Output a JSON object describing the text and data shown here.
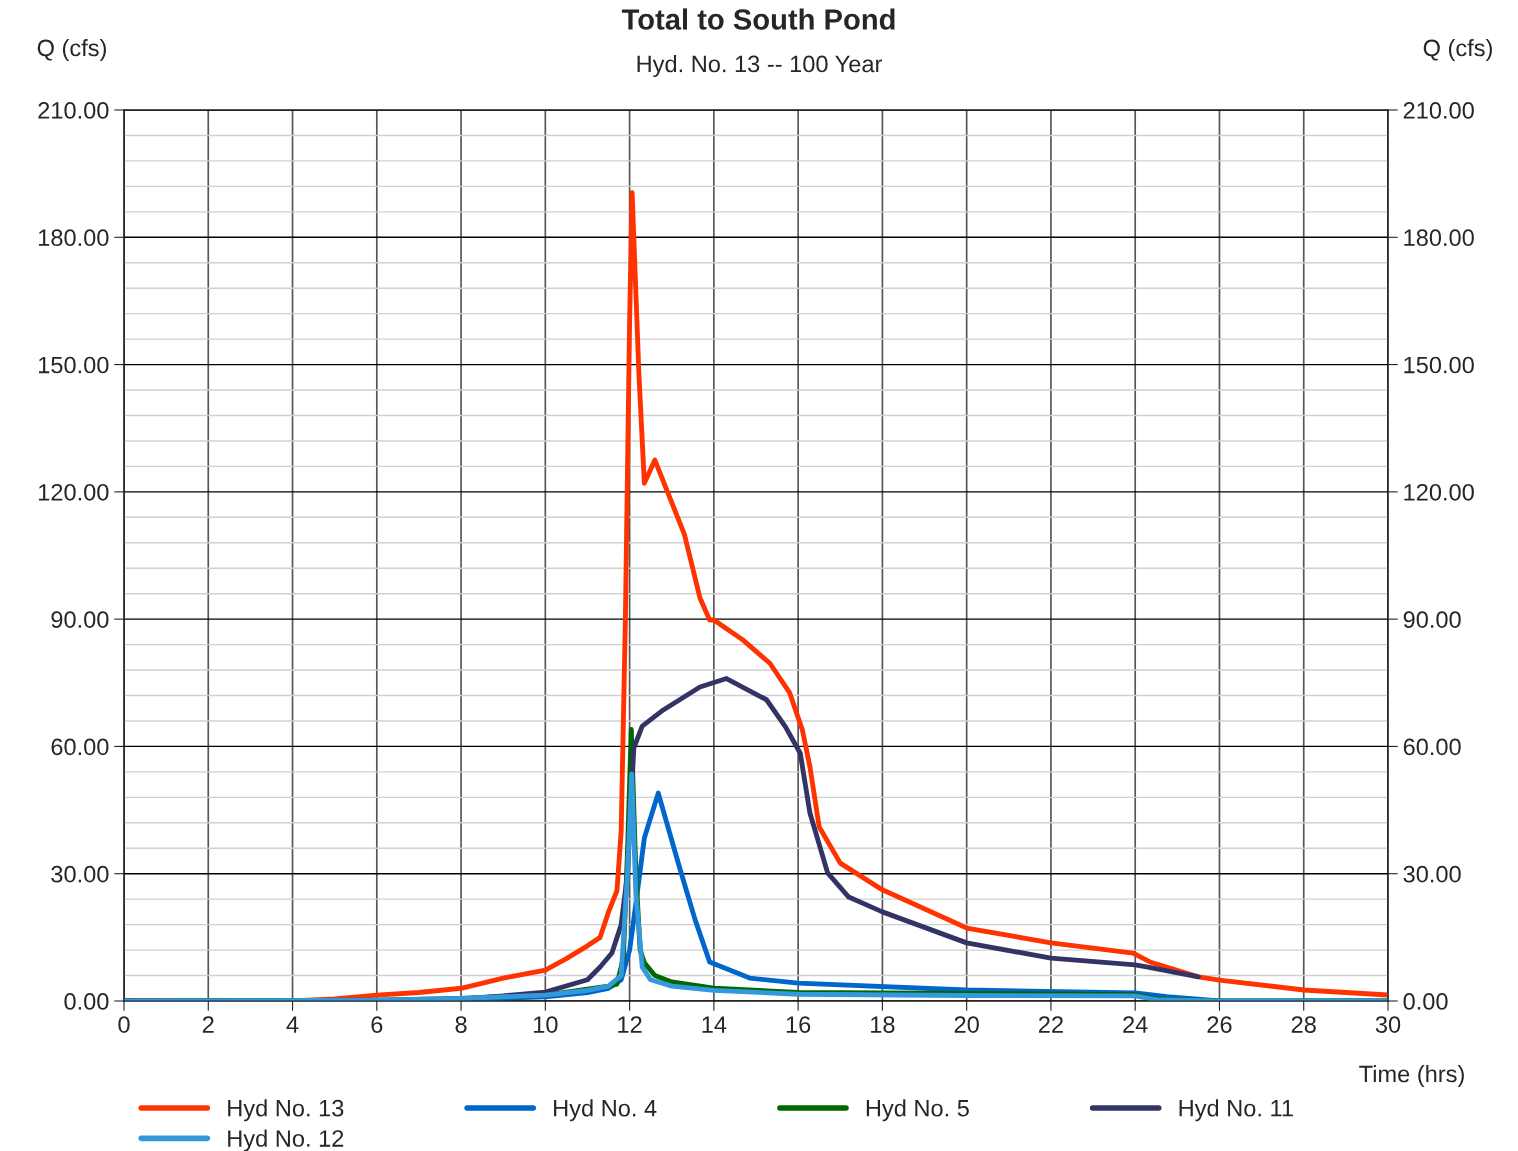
{
  "chart_data": {
    "type": "line",
    "title": "Total to South Pond",
    "subtitle": "Hyd. No. 13 -- 100 Year",
    "xlabel": "Time (hrs)",
    "ylabel": "Q (cfs)",
    "y2label": "Q (cfs)",
    "xlim": [
      0,
      30
    ],
    "xticks": [
      0,
      2,
      4,
      6,
      8,
      10,
      12,
      14,
      16,
      18,
      20,
      22,
      24,
      26,
      28,
      30
    ],
    "ylim": [
      0,
      210
    ],
    "yticks": [
      {
        "value": 0,
        "label": "0.00"
      },
      {
        "value": 6,
        "label": null
      },
      {
        "value": 12,
        "label": null
      },
      {
        "value": 18,
        "label": null
      },
      {
        "value": 24,
        "label": null
      },
      {
        "value": 30,
        "label": "30.00"
      },
      {
        "value": 36,
        "label": null
      },
      {
        "value": 42,
        "label": null
      },
      {
        "value": 48,
        "label": null
      },
      {
        "value": 54,
        "label": null
      },
      {
        "value": 60,
        "label": "60.00"
      },
      {
        "value": 66,
        "label": null
      },
      {
        "value": 72,
        "label": null
      },
      {
        "value": 78,
        "label": null
      },
      {
        "value": 84,
        "label": null
      },
      {
        "value": 90,
        "label": "90.00"
      },
      {
        "value": 96,
        "label": null
      },
      {
        "value": 102,
        "label": null
      },
      {
        "value": 108,
        "label": null
      },
      {
        "value": 114,
        "label": null
      },
      {
        "value": 120,
        "label": "120.00"
      },
      {
        "value": 126,
        "label": null
      },
      {
        "value": 132,
        "label": null
      },
      {
        "value": 138,
        "label": null
      },
      {
        "value": 144,
        "label": null
      },
      {
        "value": 150,
        "label": "150.00"
      },
      {
        "value": 156,
        "label": null
      },
      {
        "value": 162,
        "label": null
      },
      {
        "value": 168,
        "label": null
      },
      {
        "value": 174,
        "label": null
      },
      {
        "value": 180,
        "label": "180.00"
      },
      {
        "value": 186,
        "label": null
      },
      {
        "value": 192,
        "label": null
      },
      {
        "value": 198,
        "label": null
      },
      {
        "value": 204,
        "label": null
      },
      {
        "value": 210,
        "label": "210.00"
      }
    ],
    "y2lim": [
      0,
      210
    ],
    "y2ticks": [
      {
        "value": 0,
        "label": "0.00"
      },
      {
        "value": 30,
        "label": "30.00"
      },
      {
        "value": 60,
        "label": "60.00"
      },
      {
        "value": 90,
        "label": "90.00"
      },
      {
        "value": 120,
        "label": "120.00"
      },
      {
        "value": 150,
        "label": "150.00"
      },
      {
        "value": 180,
        "label": "180.00"
      },
      {
        "value": 210,
        "label": "210.00"
      }
    ],
    "grid": true,
    "legend": "bottom",
    "marker": "none",
    "line_style": "solid",
    "series": [
      {
        "name": "Hyd No. 13",
        "color": "#ff3300",
        "x": [
          0,
          4,
          5,
          6,
          7,
          8,
          9,
          10,
          10.5,
          11,
          11.3,
          11.5,
          11.7,
          11.8,
          11.9,
          12.0,
          12.06,
          12.22,
          12.35,
          12.6,
          12.9,
          13.3,
          13.67,
          13.9,
          14.0,
          14.7,
          15.33,
          15.8,
          16.1,
          16.28,
          16.5,
          17.0,
          18.0,
          20.0,
          22.0,
          23.95,
          24.35,
          25.5,
          26.0,
          28.0,
          30.0
        ],
        "values": [
          0,
          0,
          0.5,
          1.4,
          2,
          3,
          5.4,
          7.3,
          10,
          13,
          15,
          21,
          26,
          40,
          90,
          160,
          190.5,
          148,
          122,
          127.5,
          120,
          110,
          95,
          89.8,
          89.8,
          85,
          79.6,
          72.6,
          63.9,
          55.2,
          41,
          32.5,
          26.2,
          17.2,
          13.7,
          11.3,
          9.2,
          5.7,
          4.9,
          2.6,
          1.4
        ]
      },
      {
        "name": "Hyd No. 4",
        "color": "#0066cc",
        "x": [
          0,
          6,
          8,
          10,
          11,
          11.5,
          11.8,
          12.0,
          12.1,
          12.35,
          12.68,
          13.17,
          13.55,
          13.9,
          14.85,
          16,
          20,
          24,
          24.75,
          26,
          30
        ],
        "values": [
          0,
          0,
          0.3,
          1,
          2,
          3,
          5,
          12,
          19.3,
          38.4,
          49,
          32,
          19.3,
          9.2,
          5.4,
          4.2,
          2.6,
          1.9,
          1,
          0,
          0
        ]
      },
      {
        "name": "Hyd No. 5",
        "color": "#006600",
        "x": [
          0,
          6,
          8,
          10,
          11,
          11.5,
          11.7,
          11.85,
          11.95,
          12.04,
          12.15,
          12.25,
          12.35,
          12.6,
          13,
          14,
          16,
          20,
          24,
          24.5,
          26,
          30
        ],
        "values": [
          0,
          0.2,
          0.6,
          1.4,
          null,
          3.5,
          4,
          10,
          35,
          64,
          30,
          12,
          9,
          6,
          4.5,
          3,
          2,
          1.8,
          1.5,
          0.5,
          0,
          0
        ]
      },
      {
        "name": "Hyd No. 11",
        "color": "#333366",
        "x": [
          0,
          7,
          8,
          9,
          10,
          11,
          11.3,
          11.58,
          11.8,
          11.95,
          12.05,
          12.1,
          12.3,
          12.8,
          13.67,
          14.3,
          15.25,
          15.7,
          16.05,
          16.28,
          16.7,
          17.2,
          18,
          20,
          22,
          24,
          24.3,
          25.5
        ],
        "values": [
          0,
          0,
          0.5,
          1.2,
          2.1,
          5,
          8,
          11.3,
          18,
          30,
          50,
          59.6,
          64.8,
          68.6,
          74,
          76,
          71,
          64.6,
          58.4,
          44.3,
          30.2,
          24.5,
          21,
          13.7,
          10.1,
          8.5,
          8,
          5.7
        ]
      },
      {
        "name": "Hyd No. 12",
        "color": "#3399dd",
        "x": [
          0,
          6,
          8,
          10,
          11,
          11.5,
          11.8,
          11.95,
          12.05,
          12.15,
          12.3,
          12.5,
          13,
          14,
          16,
          20,
          24,
          24.5,
          26,
          30
        ],
        "values": [
          0,
          0.2,
          0.6,
          1.4,
          2.5,
          3.5,
          6,
          30,
          53.5,
          25,
          8,
          5,
          3.5,
          2.5,
          1.6,
          1.3,
          1.2,
          0.3,
          0,
          0
        ]
      }
    ]
  }
}
